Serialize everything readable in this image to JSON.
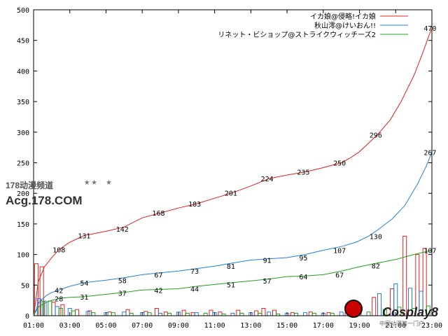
{
  "chart_data": {
    "type": "line",
    "title": "",
    "xlabel": "",
    "ylabel": "",
    "ylim": [
      0,
      500
    ],
    "yticks": [
      0,
      50,
      100,
      150,
      200,
      250,
      300,
      350,
      400,
      450,
      500
    ],
    "xticks": [
      "01:00",
      "03:00",
      "05:00",
      "07:00",
      "09:00",
      "11:00",
      "13:00",
      "15:00",
      "17:00",
      "19:00",
      "21:00",
      "23:00"
    ],
    "legend_position": "top-right",
    "grid": false,
    "series": [
      {
        "name": "イカ娘@侵略!イカ娘",
        "color": "#e02020",
        "points": [
          [
            0,
            0
          ],
          [
            0.1,
            20
          ],
          [
            0.25,
            55
          ],
          [
            0.6,
            80
          ],
          [
            1,
            95
          ],
          [
            1.4,
            108
          ],
          [
            2,
            120
          ],
          [
            2.8,
            131
          ],
          [
            4,
            138
          ],
          [
            5,
            145
          ],
          [
            6,
            160
          ],
          [
            7,
            168
          ],
          [
            8,
            176
          ],
          [
            9,
            183
          ],
          [
            10,
            192
          ],
          [
            11,
            201
          ],
          [
            12,
            212
          ],
          [
            13,
            224
          ],
          [
            14,
            230
          ],
          [
            15,
            235
          ],
          [
            16,
            242
          ],
          [
            17,
            250
          ],
          [
            17.5,
            258
          ],
          [
            18,
            268
          ],
          [
            18.5,
            282
          ],
          [
            19,
            296
          ],
          [
            19.7,
            320
          ],
          [
            20.3,
            350
          ],
          [
            21,
            392
          ],
          [
            21.5,
            430
          ],
          [
            21.8,
            455
          ],
          [
            22,
            470
          ]
        ],
        "labels": [
          [
            1.4,
            108
          ],
          [
            2.8,
            131
          ],
          [
            4.9,
            142
          ],
          [
            6.9,
            168
          ],
          [
            8.9,
            183
          ],
          [
            10.9,
            201
          ],
          [
            12.9,
            224
          ],
          [
            14.9,
            235
          ],
          [
            16.9,
            250
          ],
          [
            18.9,
            296
          ],
          [
            21.9,
            470
          ]
        ]
      },
      {
        "name": "秋山澪@けいおん!!",
        "color": "#2080e0",
        "points": [
          [
            0,
            0
          ],
          [
            0.1,
            8
          ],
          [
            0.3,
            22
          ],
          [
            0.7,
            33
          ],
          [
            1,
            38
          ],
          [
            1.4,
            42
          ],
          [
            2,
            48
          ],
          [
            2.8,
            54
          ],
          [
            4,
            58
          ],
          [
            5,
            62
          ],
          [
            6,
            67
          ],
          [
            7,
            70
          ],
          [
            8,
            73
          ],
          [
            9,
            77
          ],
          [
            10,
            81
          ],
          [
            11,
            86
          ],
          [
            12,
            91
          ],
          [
            13,
            93
          ],
          [
            14,
            95
          ],
          [
            15,
            100
          ],
          [
            16,
            107
          ],
          [
            17,
            113
          ],
          [
            17.8,
            120
          ],
          [
            18.5,
            130
          ],
          [
            19,
            140
          ],
          [
            19.8,
            158
          ],
          [
            20.5,
            180
          ],
          [
            21.2,
            215
          ],
          [
            21.7,
            245
          ],
          [
            22,
            267
          ]
        ],
        "labels": [
          [
            1.4,
            42
          ],
          [
            2.8,
            54
          ],
          [
            4.9,
            58
          ],
          [
            6.9,
            67
          ],
          [
            8.9,
            73
          ],
          [
            10.9,
            81
          ],
          [
            12.9,
            91
          ],
          [
            14.9,
            95
          ],
          [
            16.9,
            107
          ],
          [
            18.9,
            130
          ],
          [
            21.9,
            267
          ]
        ]
      },
      {
        "name": "リネット・ビショップ@ストライクウィッチーズ2",
        "color": "#20a020",
        "points": [
          [
            0,
            0
          ],
          [
            0.1,
            6
          ],
          [
            0.3,
            15
          ],
          [
            0.7,
            22
          ],
          [
            1,
            25
          ],
          [
            1.4,
            28
          ],
          [
            2,
            30
          ],
          [
            2.8,
            31
          ],
          [
            4,
            35
          ],
          [
            5,
            38
          ],
          [
            6,
            42
          ],
          [
            7,
            43
          ],
          [
            8,
            44
          ],
          [
            9,
            48
          ],
          [
            10,
            51
          ],
          [
            11,
            54
          ],
          [
            12,
            57
          ],
          [
            13,
            60
          ],
          [
            14,
            64
          ],
          [
            15,
            65
          ],
          [
            16,
            67
          ],
          [
            17,
            73
          ],
          [
            18,
            80
          ],
          [
            19,
            86
          ],
          [
            20,
            92
          ],
          [
            21,
            100
          ],
          [
            22,
            107
          ]
        ],
        "labels": [
          [
            1.4,
            28
          ],
          [
            2.8,
            31
          ],
          [
            4.9,
            37
          ],
          [
            6.9,
            42
          ],
          [
            8.9,
            44
          ],
          [
            10.9,
            51
          ],
          [
            12.9,
            57
          ],
          [
            14.9,
            64
          ],
          [
            16.9,
            67
          ],
          [
            18.9,
            82
          ],
          [
            21.9,
            107
          ]
        ]
      }
    ],
    "bars": [
      {
        "series": 0,
        "bins": [
          [
            0.15,
            85
          ],
          [
            0.45,
            80
          ],
          [
            1.1,
            22
          ],
          [
            1.6,
            18
          ],
          [
            2.4,
            10
          ],
          [
            3.1,
            8
          ],
          [
            4.2,
            6
          ],
          [
            5.2,
            10
          ],
          [
            6.2,
            7
          ],
          [
            6.8,
            12
          ],
          [
            7.3,
            6
          ],
          [
            8.3,
            9
          ],
          [
            8.8,
            5
          ],
          [
            9.8,
            9
          ],
          [
            10.3,
            6
          ],
          [
            11.3,
            9
          ],
          [
            12.3,
            8
          ],
          [
            12.7,
            12
          ],
          [
            13.3,
            9
          ],
          [
            14.3,
            5
          ],
          [
            15.3,
            6
          ],
          [
            16.3,
            5
          ],
          [
            17.3,
            5
          ],
          [
            18.8,
            30
          ],
          [
            19.8,
            44
          ],
          [
            20.5,
            130
          ],
          [
            21.2,
            100
          ],
          [
            21.6,
            110
          ]
        ]
      },
      {
        "series": 1,
        "bins": [
          [
            0.3,
            28
          ],
          [
            0.6,
            24
          ],
          [
            1.3,
            15
          ],
          [
            2.0,
            12
          ],
          [
            3.0,
            7
          ],
          [
            4.0,
            5
          ],
          [
            5.0,
            6
          ],
          [
            6.0,
            5
          ],
          [
            7.0,
            4
          ],
          [
            8.0,
            6
          ],
          [
            9.0,
            5
          ],
          [
            10.0,
            5
          ],
          [
            11.0,
            4
          ],
          [
            12.0,
            5
          ],
          [
            13.0,
            6
          ],
          [
            14.0,
            4
          ],
          [
            15.0,
            5
          ],
          [
            16.0,
            4
          ],
          [
            17.0,
            6
          ],
          [
            18.0,
            10
          ],
          [
            19.1,
            36
          ],
          [
            20.0,
            52
          ],
          [
            20.8,
            45
          ],
          [
            21.4,
            40
          ]
        ]
      },
      {
        "series": 2,
        "bins": [
          [
            0.5,
            24
          ],
          [
            0.9,
            24
          ],
          [
            1.5,
            12
          ],
          [
            2.2,
            8
          ],
          [
            3.3,
            5
          ],
          [
            4.4,
            5
          ],
          [
            5.4,
            4
          ],
          [
            6.4,
            5
          ],
          [
            7.5,
            4
          ],
          [
            8.5,
            4
          ],
          [
            9.5,
            4
          ],
          [
            10.5,
            3
          ],
          [
            11.5,
            4
          ],
          [
            12.5,
            4
          ],
          [
            13.5,
            3
          ],
          [
            14.5,
            4
          ],
          [
            15.5,
            4
          ],
          [
            16.5,
            4
          ],
          [
            17.5,
            5
          ],
          [
            18.5,
            6
          ],
          [
            19.4,
            10
          ],
          [
            20.2,
            14
          ],
          [
            21.0,
            12
          ],
          [
            21.8,
            16
          ]
        ]
      }
    ]
  },
  "watermark": {
    "site_cn": "178动漫频道",
    "site_en": "Acg.178.COM",
    "stars": "★★ ★",
    "cosplay_brand": "Cosplay8",
    "cosplay_sub": "中国动漫第一门户"
  }
}
